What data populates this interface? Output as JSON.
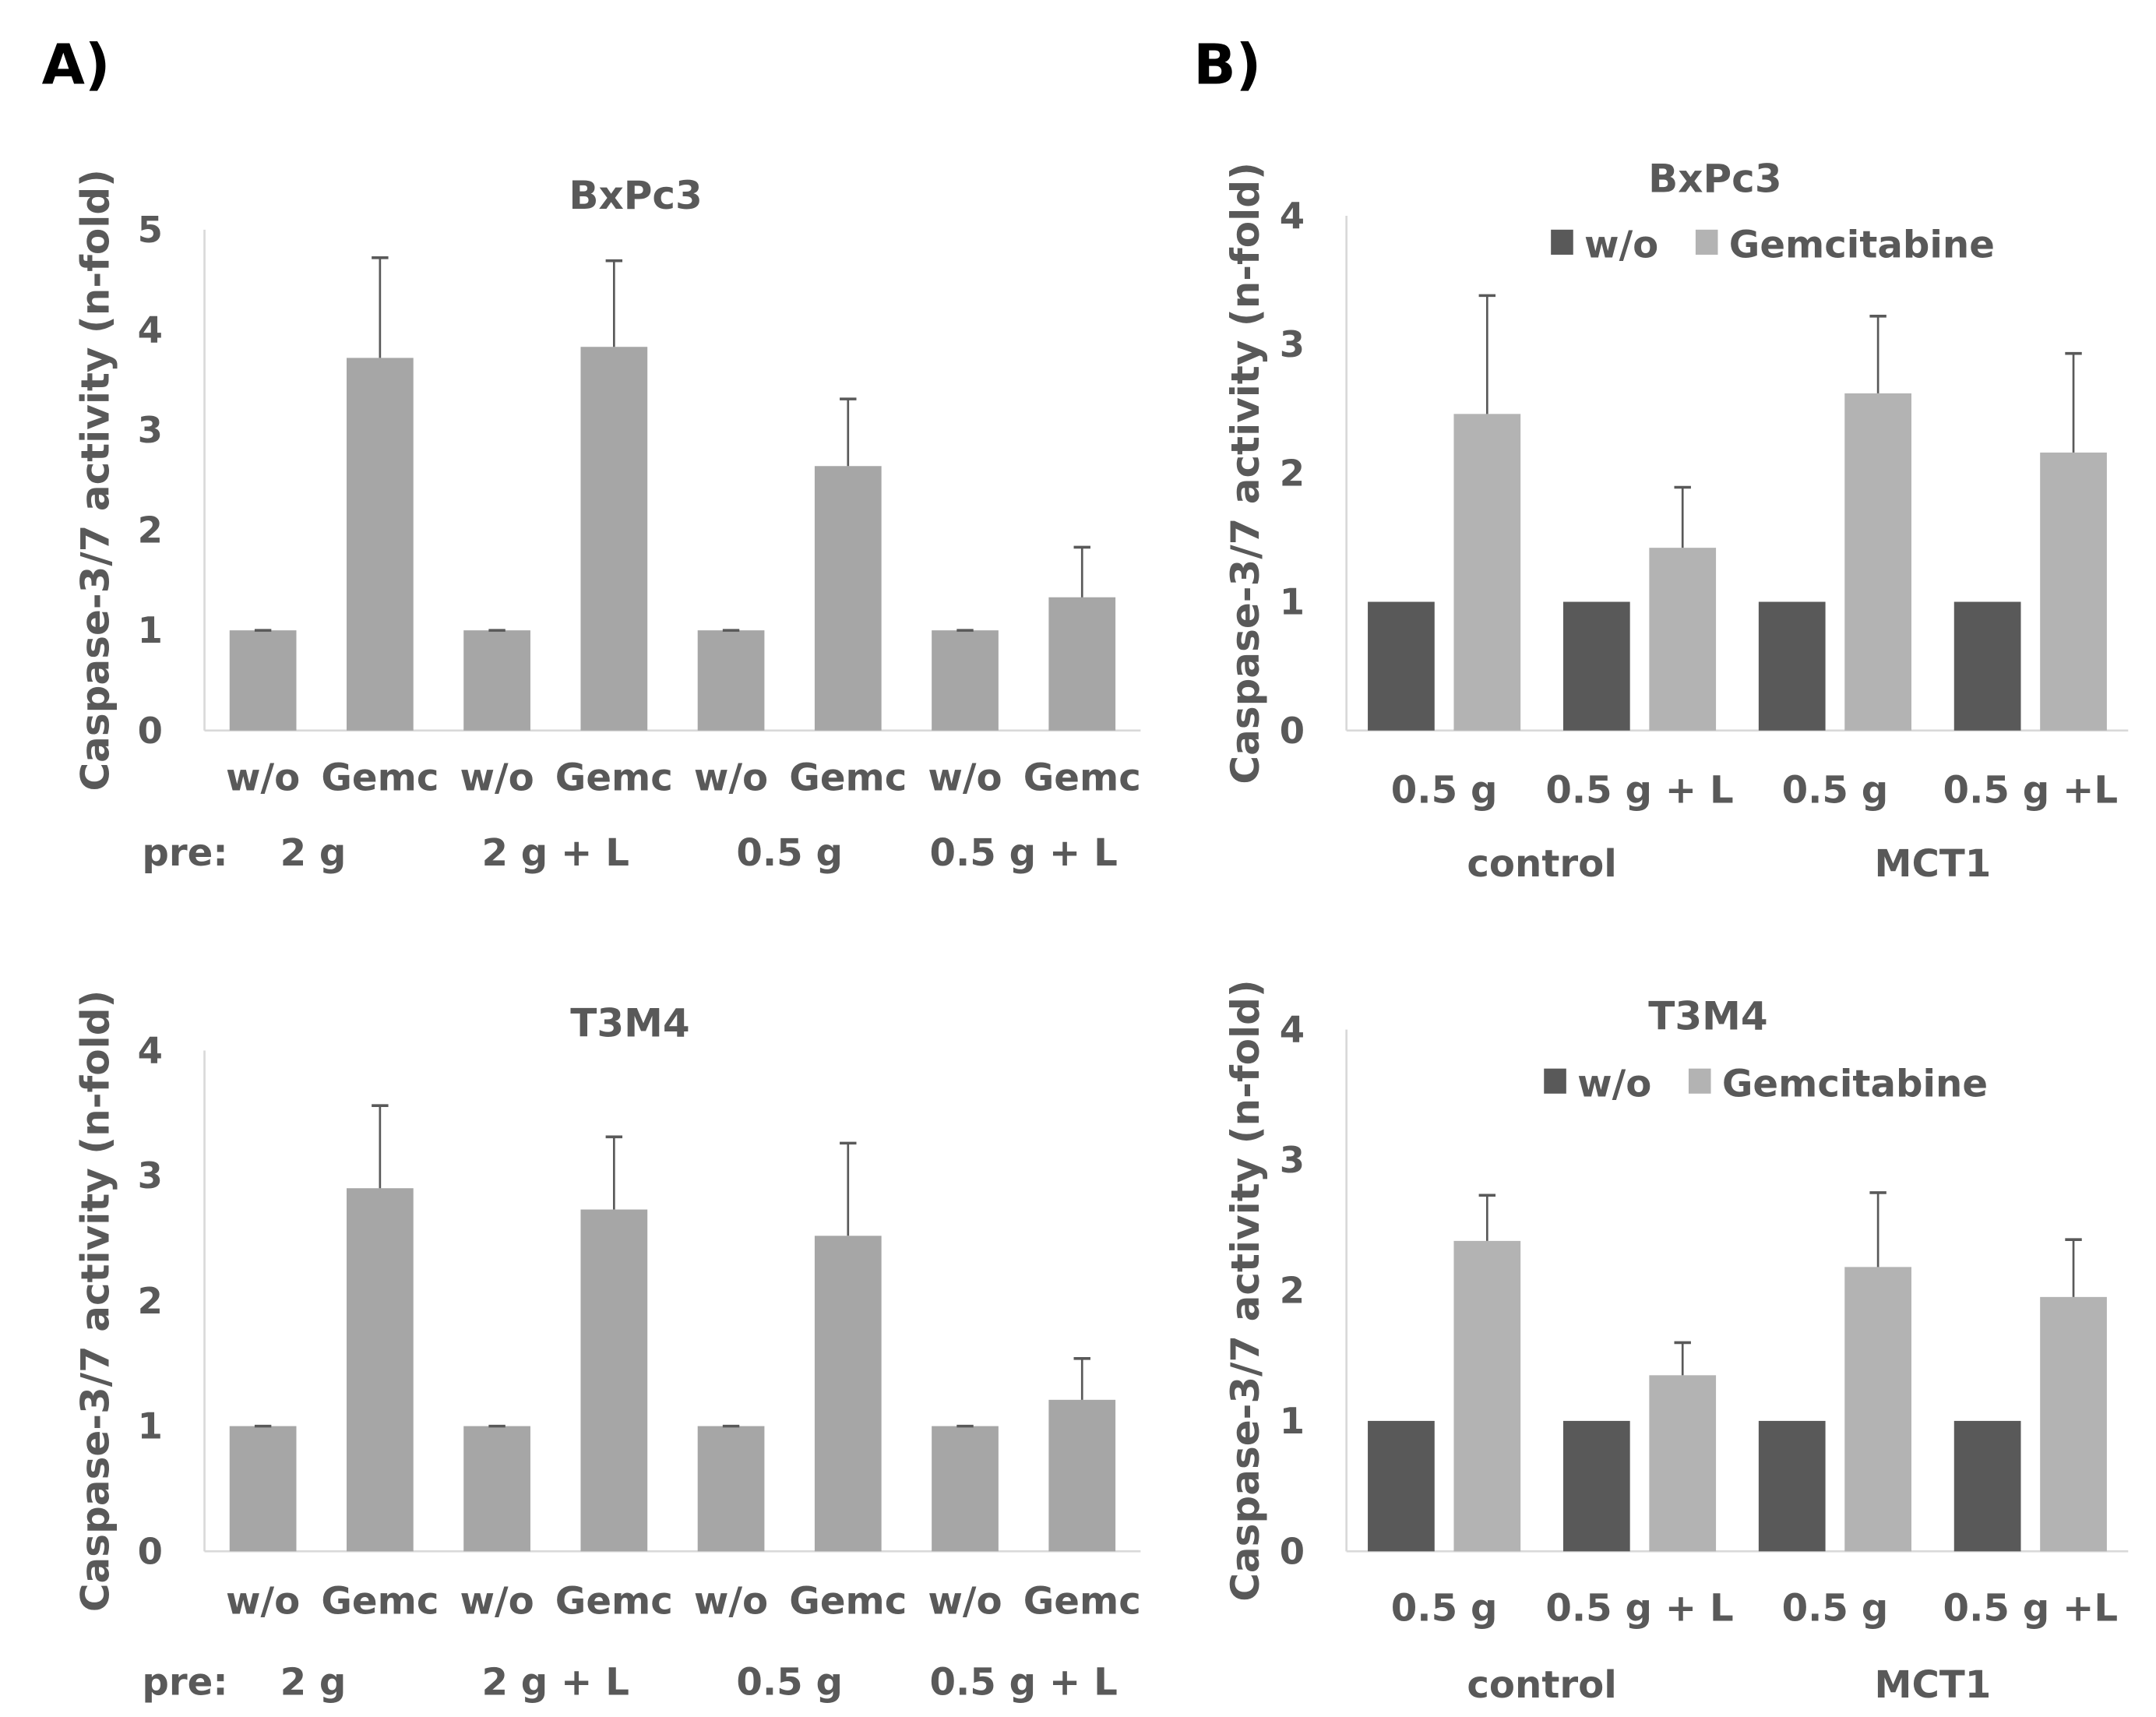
{
  "panels": [
    "A)",
    "B)"
  ],
  "colors": {
    "bar_a": "#a6a6a6",
    "wo": "#595959",
    "gem": "#b3b3b3",
    "axis": "#d9d9d9",
    "text": "#595959",
    "err": "#595959"
  },
  "chart_data": [
    {
      "type": "bar",
      "panel": "A",
      "title": "BxPc3",
      "ylabel": "Caspase-3/7 activity (n-fold)",
      "ylim": [
        0,
        5
      ],
      "yticks": [
        0,
        1,
        2,
        3,
        4,
        5
      ],
      "categories": [
        "w/o",
        "Gemc",
        "w/o",
        "Gemc",
        "w/o",
        "Gemc",
        "w/o",
        "Gemc"
      ],
      "group_prefix": "pre:",
      "groups": [
        "2 g",
        "2 g + L",
        "0.5 g",
        "0.5 g + L"
      ],
      "values": [
        1,
        3.72,
        1,
        3.83,
        1,
        2.64,
        1,
        1.33
      ],
      "error_upper": [
        1,
        4.72,
        1,
        4.69,
        1,
        3.31,
        1,
        1.83
      ]
    },
    {
      "type": "bar",
      "panel": "A",
      "title": "T3M4",
      "ylabel": "Caspase-3/7 activity (n-fold)",
      "ylim": [
        0,
        4
      ],
      "yticks": [
        0,
        1,
        2,
        3,
        4
      ],
      "categories": [
        "w/o",
        "Gemc",
        "w/o",
        "Gemc",
        "w/o",
        "Gemc",
        "w/o",
        "Gemc"
      ],
      "group_prefix": "pre:",
      "groups": [
        "2 g",
        "2 g + L",
        "0.5 g",
        "0.5 g + L"
      ],
      "values": [
        1,
        2.9,
        1,
        2.73,
        1,
        2.52,
        1,
        1.21
      ],
      "error_upper": [
        1,
        3.56,
        1,
        3.31,
        1,
        3.26,
        1,
        1.54
      ]
    },
    {
      "type": "bar",
      "panel": "B",
      "title": "BxPc3",
      "ylabel": "Caspase-3/7 activity (n-fold)",
      "ylim": [
        0,
        4
      ],
      "yticks": [
        0,
        1,
        2,
        3,
        4
      ],
      "legend": [
        "w/o",
        "Gemcitabine"
      ],
      "legend_position": "top-center",
      "categories": [
        "0.5 g",
        "0.5 g + L",
        "0.5 g",
        "0.5 g +L"
      ],
      "groups": [
        "control",
        "MCT1"
      ],
      "series": [
        {
          "name": "w/o",
          "values": [
            1,
            1,
            1,
            1
          ]
        },
        {
          "name": "Gemcitabine",
          "values": [
            2.46,
            1.42,
            2.62,
            2.16
          ],
          "error_upper": [
            3.38,
            1.89,
            3.22,
            2.93
          ]
        }
      ]
    },
    {
      "type": "bar",
      "panel": "B",
      "title": "T3M4",
      "ylabel": "Caspase-3/7 activity (n-fold)",
      "ylim": [
        0,
        4
      ],
      "yticks": [
        0,
        1,
        2,
        3,
        4
      ],
      "legend": [
        "w/o",
        "Gemcitabine"
      ],
      "legend_position": "top-center",
      "categories": [
        "0.5 g",
        "0.5 g + L",
        "0.5 g",
        "0.5 g +L"
      ],
      "groups": [
        "control",
        "MCT1"
      ],
      "series": [
        {
          "name": "w/o",
          "values": [
            1,
            1,
            1,
            1
          ]
        },
        {
          "name": "Gemcitabine",
          "values": [
            2.38,
            1.35,
            2.18,
            1.95
          ],
          "error_upper": [
            2.73,
            1.6,
            2.75,
            2.39
          ]
        }
      ]
    }
  ]
}
